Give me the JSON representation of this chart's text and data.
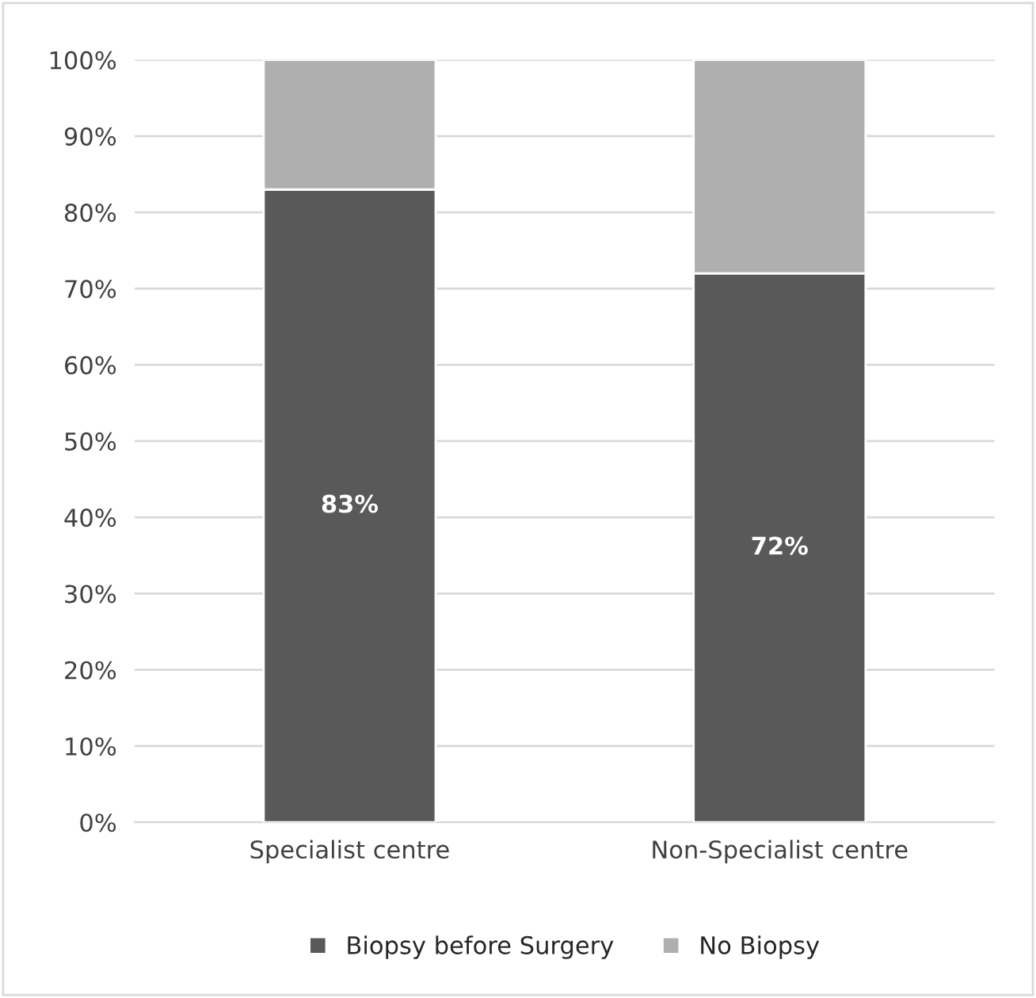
{
  "chart_data": {
    "type": "bar",
    "stacked": true,
    "categories": [
      "Specialist centre",
      "Non-Specialist centre"
    ],
    "series": [
      {
        "name": "Biopsy before Surgery",
        "color": "#595959",
        "values": [
          83,
          72
        ],
        "value_labels": [
          "83%",
          "72%"
        ]
      },
      {
        "name": "No Biopsy",
        "color": "#afafaf",
        "values": [
          17,
          28
        ]
      }
    ],
    "ylim": [
      0,
      100
    ],
    "yticks": [
      {
        "value": 0,
        "label": "0%"
      },
      {
        "value": 10,
        "label": "10%"
      },
      {
        "value": 20,
        "label": "20%"
      },
      {
        "value": 30,
        "label": "30%"
      },
      {
        "value": 40,
        "label": "40%"
      },
      {
        "value": 50,
        "label": "50%"
      },
      {
        "value": 60,
        "label": "60%"
      },
      {
        "value": 70,
        "label": "70%"
      },
      {
        "value": 80,
        "label": "80%"
      },
      {
        "value": 90,
        "label": "90%"
      },
      {
        "value": 100,
        "label": "100%"
      }
    ],
    "grid": "y",
    "legend": "bottom"
  }
}
